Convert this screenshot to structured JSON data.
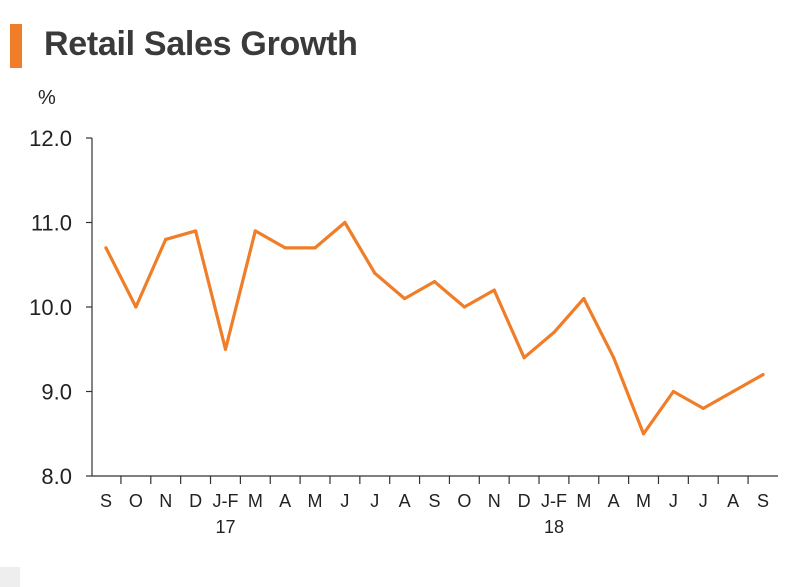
{
  "chart_data": {
    "type": "line",
    "title": "Retail Sales Growth",
    "ylabel": "%",
    "xlabel": "",
    "ylim": [
      8.0,
      12.0
    ],
    "yticks": [
      "8.0",
      "9.0",
      "10.0",
      "11.0",
      "12.0"
    ],
    "categories": [
      "S",
      "O",
      "N",
      "D",
      "J-F",
      "M",
      "A",
      "M",
      "J",
      "J",
      "A",
      "S",
      "O",
      "N",
      "D",
      "J-F",
      "M",
      "A",
      "M",
      "J",
      "J",
      "A",
      "S"
    ],
    "year_labels": [
      {
        "label": "17",
        "category_index": 4
      },
      {
        "label": "18",
        "category_index": 15
      }
    ],
    "series": [
      {
        "color": "#f07d28",
        "values": [
          10.7,
          10.0,
          10.8,
          10.9,
          9.5,
          10.9,
          10.7,
          10.7,
          11.0,
          10.4,
          10.1,
          10.3,
          10.0,
          10.2,
          9.4,
          9.7,
          10.1,
          9.4,
          8.5,
          9.0,
          8.8,
          9.0,
          9.2
        ]
      }
    ],
    "grid": false,
    "legend": "none"
  }
}
